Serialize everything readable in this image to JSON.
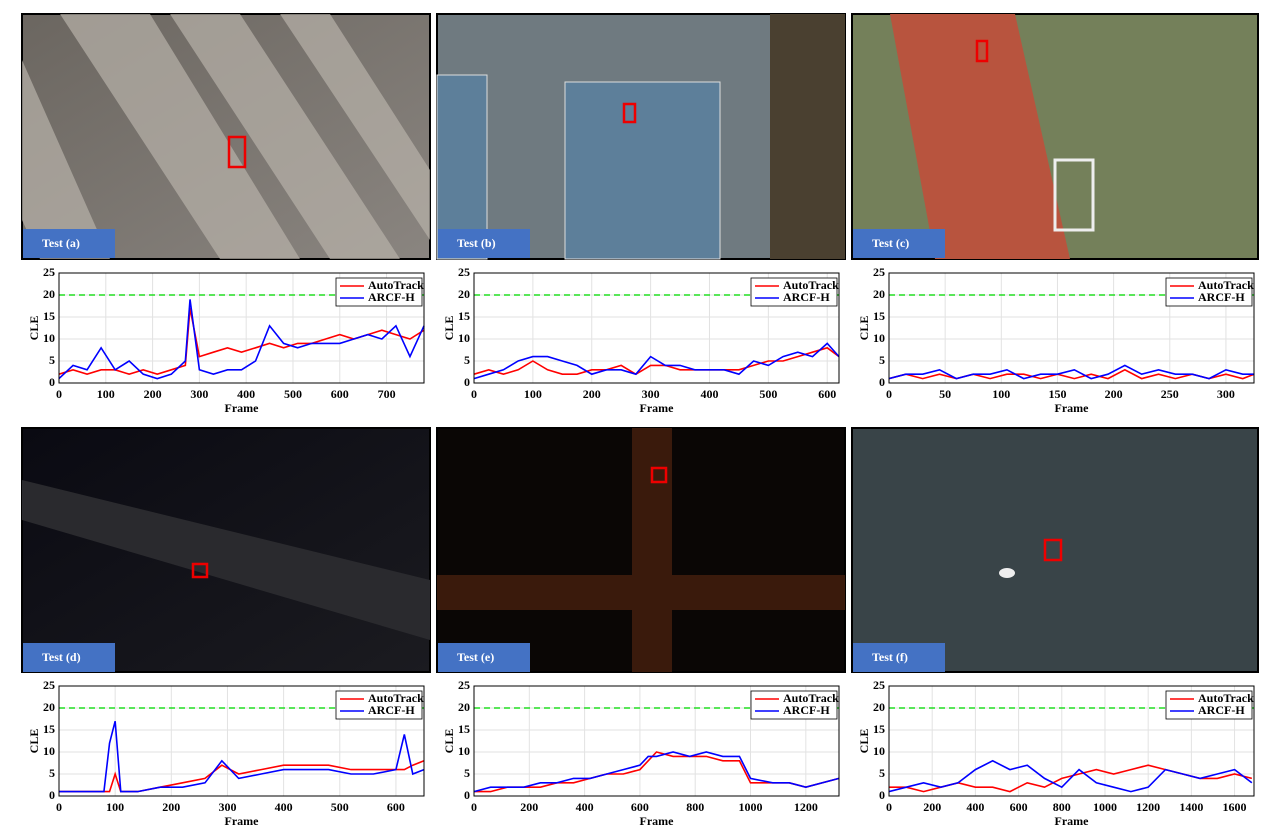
{
  "panels": [
    {
      "label": "Test (a)"
    },
    {
      "label": "Test (b)"
    },
    {
      "label": "Test (c)"
    },
    {
      "label": "Test (d)"
    },
    {
      "label": "Test (e)"
    },
    {
      "label": "Test (f)"
    }
  ],
  "chart_data": [
    {
      "type": "line",
      "xlabel": "Frame",
      "ylabel": "CLE",
      "xlim": [
        0,
        780
      ],
      "xticks": [
        0,
        100,
        200,
        300,
        400,
        500,
        600,
        700
      ],
      "ylim": [
        0,
        25
      ],
      "yticks": [
        0,
        5,
        10,
        15,
        20,
        25
      ],
      "grid": true,
      "legend": "upper right",
      "threshold": 20,
      "threshold_color": "#22dd22",
      "x": [
        0,
        30,
        60,
        90,
        120,
        150,
        180,
        210,
        240,
        270,
        280,
        300,
        330,
        360,
        390,
        420,
        450,
        480,
        510,
        540,
        570,
        600,
        630,
        660,
        690,
        720,
        750,
        780
      ],
      "series": [
        {
          "name": "AutoTrack",
          "color": "#ff0000",
          "values": [
            2,
            3,
            2,
            3,
            3,
            2,
            3,
            2,
            3,
            4,
            17,
            6,
            7,
            8,
            7,
            8,
            9,
            8,
            9,
            9,
            10,
            11,
            10,
            11,
            12,
            11,
            10,
            12
          ]
        },
        {
          "name": "ARCF-H",
          "color": "#0000ff",
          "values": [
            1,
            4,
            3,
            8,
            3,
            5,
            2,
            1,
            2,
            5,
            19,
            3,
            2,
            3,
            3,
            5,
            13,
            9,
            8,
            9,
            9,
            9,
            10,
            11,
            10,
            13,
            6,
            13
          ]
        }
      ]
    },
    {
      "type": "line",
      "xlabel": "Frame",
      "ylabel": "CLE",
      "xlim": [
        0,
        620
      ],
      "xticks": [
        0,
        100,
        200,
        300,
        400,
        500,
        600
      ],
      "ylim": [
        0,
        25
      ],
      "yticks": [
        0,
        5,
        10,
        15,
        20,
        25
      ],
      "grid": true,
      "legend": "upper right",
      "threshold": 20,
      "threshold_color": "#22dd22",
      "x": [
        0,
        25,
        50,
        75,
        100,
        125,
        150,
        175,
        200,
        225,
        250,
        275,
        300,
        325,
        350,
        375,
        400,
        425,
        450,
        475,
        500,
        525,
        550,
        575,
        600,
        620
      ],
      "series": [
        {
          "name": "AutoTrack",
          "color": "#ff0000",
          "values": [
            2,
            3,
            2,
            3,
            5,
            3,
            2,
            2,
            3,
            3,
            4,
            2,
            4,
            4,
            3,
            3,
            3,
            3,
            3,
            4,
            5,
            5,
            6,
            7,
            8,
            6
          ]
        },
        {
          "name": "ARCF-H",
          "color": "#0000ff",
          "values": [
            1,
            2,
            3,
            5,
            6,
            6,
            5,
            4,
            2,
            3,
            3,
            2,
            6,
            4,
            4,
            3,
            3,
            3,
            2,
            5,
            4,
            6,
            7,
            6,
            9,
            6
          ]
        }
      ]
    },
    {
      "type": "line",
      "xlabel": "Frame",
      "ylabel": "CLE",
      "xlim": [
        0,
        325
      ],
      "xticks": [
        0,
        50,
        100,
        150,
        200,
        250,
        300
      ],
      "ylim": [
        0,
        25
      ],
      "yticks": [
        0,
        5,
        10,
        15,
        20,
        25
      ],
      "grid": true,
      "legend": "upper right",
      "threshold": 20,
      "threshold_color": "#22dd22",
      "x": [
        0,
        15,
        30,
        45,
        60,
        75,
        90,
        105,
        120,
        135,
        150,
        165,
        180,
        195,
        210,
        225,
        240,
        255,
        270,
        285,
        300,
        315,
        325
      ],
      "series": [
        {
          "name": "AutoTrack",
          "color": "#ff0000",
          "values": [
            1,
            2,
            1,
            2,
            1,
            2,
            1,
            2,
            2,
            1,
            2,
            1,
            2,
            1,
            3,
            1,
            2,
            1,
            2,
            1,
            2,
            1,
            2
          ]
        },
        {
          "name": "ARCF-H",
          "color": "#0000ff",
          "values": [
            1,
            2,
            2,
            3,
            1,
            2,
            2,
            3,
            1,
            2,
            2,
            3,
            1,
            2,
            4,
            2,
            3,
            2,
            2,
            1,
            3,
            2,
            2
          ]
        }
      ]
    },
    {
      "type": "line",
      "xlabel": "Frame",
      "ylabel": "CLE",
      "xlim": [
        0,
        650
      ],
      "xticks": [
        0,
        100,
        200,
        300,
        400,
        500,
        600
      ],
      "ylim": [
        0,
        25
      ],
      "yticks": [
        0,
        5,
        10,
        15,
        20,
        25
      ],
      "grid": true,
      "legend": "upper right",
      "threshold": 20,
      "threshold_color": "#22dd22",
      "x": [
        0,
        40,
        80,
        90,
        100,
        110,
        140,
        180,
        220,
        260,
        290,
        320,
        360,
        400,
        440,
        480,
        520,
        560,
        600,
        615,
        630,
        650
      ],
      "series": [
        {
          "name": "AutoTrack",
          "color": "#ff0000",
          "values": [
            1,
            1,
            1,
            1,
            5,
            1,
            1,
            2,
            3,
            4,
            7,
            5,
            6,
            7,
            7,
            7,
            6,
            6,
            6,
            6,
            7,
            8
          ]
        },
        {
          "name": "ARCF-H",
          "color": "#0000ff",
          "values": [
            1,
            1,
            1,
            12,
            17,
            1,
            1,
            2,
            2,
            3,
            8,
            4,
            5,
            6,
            6,
            6,
            5,
            5,
            6,
            14,
            5,
            6
          ]
        }
      ]
    },
    {
      "type": "line",
      "xlabel": "Frame",
      "ylabel": "CLE",
      "xlim": [
        0,
        1320
      ],
      "xticks": [
        0,
        200,
        400,
        600,
        800,
        1000,
        1200
      ],
      "ylim": [
        0,
        25
      ],
      "yticks": [
        0,
        5,
        10,
        15,
        20,
        25
      ],
      "grid": true,
      "legend": "upper right",
      "threshold": 20,
      "threshold_color": "#22dd22",
      "x": [
        0,
        60,
        120,
        180,
        240,
        300,
        360,
        420,
        480,
        540,
        600,
        630,
        660,
        720,
        780,
        840,
        900,
        960,
        1000,
        1080,
        1140,
        1200,
        1320
      ],
      "series": [
        {
          "name": "AutoTrack",
          "color": "#ff0000",
          "values": [
            1,
            1,
            2,
            2,
            2,
            3,
            3,
            4,
            5,
            5,
            6,
            8,
            10,
            9,
            9,
            9,
            8,
            8,
            3,
            3,
            3,
            2,
            4
          ]
        },
        {
          "name": "ARCF-H",
          "color": "#0000ff",
          "values": [
            1,
            2,
            2,
            2,
            3,
            3,
            4,
            4,
            5,
            6,
            7,
            9,
            9,
            10,
            9,
            10,
            9,
            9,
            4,
            3,
            3,
            2,
            4
          ]
        }
      ]
    },
    {
      "type": "line",
      "xlabel": "Frame",
      "ylabel": "CLE",
      "xlim": [
        0,
        1690
      ],
      "xticks": [
        0,
        200,
        400,
        600,
        800,
        1000,
        1200,
        1400,
        1600
      ],
      "ylim": [
        0,
        25
      ],
      "yticks": [
        0,
        5,
        10,
        15,
        20,
        25
      ],
      "grid": true,
      "legend": "upper right",
      "threshold": 20,
      "threshold_color": "#22dd22",
      "x": [
        0,
        80,
        160,
        240,
        320,
        400,
        480,
        560,
        640,
        720,
        800,
        880,
        960,
        1040,
        1120,
        1200,
        1280,
        1360,
        1440,
        1520,
        1600,
        1680
      ],
      "series": [
        {
          "name": "AutoTrack",
          "color": "#ff0000",
          "values": [
            2,
            2,
            1,
            2,
            3,
            2,
            2,
            1,
            3,
            2,
            4,
            5,
            6,
            5,
            6,
            7,
            6,
            5,
            4,
            4,
            5,
            4
          ]
        },
        {
          "name": "ARCF-H",
          "color": "#0000ff",
          "values": [
            1,
            2,
            3,
            2,
            3,
            6,
            8,
            6,
            7,
            4,
            2,
            6,
            3,
            2,
            1,
            2,
            6,
            5,
            4,
            5,
            6,
            3
          ]
        }
      ]
    }
  ]
}
